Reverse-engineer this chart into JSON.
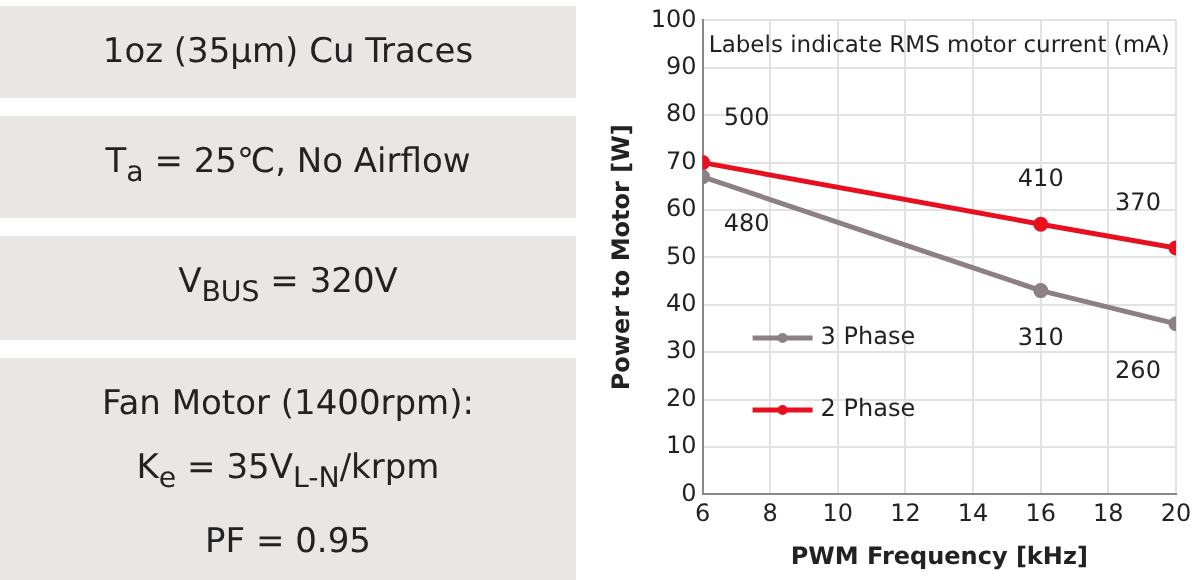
{
  "chart_data": [
    {
      "type": "other",
      "annotations": [
        "1oz (35µm) Cu Traces",
        "T$_{a}$ = 25℃, No Airflow",
        "V$_{BUS}$ = 320V",
        "Fan Motor (1400rpm):\nK$_{e}$ = 35V$_{L-N}$/krpm\nPF = 0.95"
      ]
    },
    {
      "type": "line",
      "xlabel": "PWM Frequency [kHz]",
      "ylabel": "Power to Motor [W]",
      "annotations": [
        "Labels indicate RMS motor current (mA)",
        {
          "text": "500",
          "x": 6,
          "y": 70
        },
        {
          "text": "410",
          "x": 16,
          "y": 57
        },
        {
          "text": "370",
          "x": 20,
          "y": 52
        },
        {
          "text": "480",
          "x": 6,
          "y": 67
        },
        {
          "text": "310",
          "x": 16,
          "y": 43
        },
        {
          "text": "260",
          "x": 20,
          "y": 36
        }
      ],
      "x": [
        6,
        16,
        20
      ],
      "series": [
        {
          "name": "3 Phase",
          "color": "#8c7f86",
          "values": [
            67,
            43,
            36
          ]
        },
        {
          "name": "2 Phase",
          "color": "#e8101e",
          "values": [
            70,
            57,
            52
          ]
        }
      ],
      "xlim": [
        6,
        20
      ],
      "xticks": [
        6,
        8,
        10,
        12,
        14,
        16,
        18,
        20
      ],
      "ylim": [
        0,
        100
      ],
      "yticks": [
        0,
        10,
        20,
        30,
        40,
        50,
        60,
        70,
        80,
        90,
        100
      ],
      "grid": true,
      "legend": "left",
      "marker": "circle",
      "line_style": "solid"
    }
  ]
}
